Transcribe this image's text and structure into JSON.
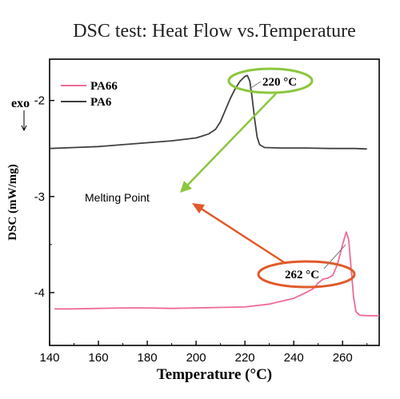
{
  "chart_data": {
    "type": "line",
    "title": "DSC test: Heat Flow vs.Temperature",
    "xlabel": "Temperature (°C)",
    "ylabel": "DSC (mW/mg)",
    "xlim": [
      140,
      275
    ],
    "ylim": [
      -4.55,
      -1.57
    ],
    "x_ticks": [
      140,
      160,
      180,
      200,
      220,
      240,
      260
    ],
    "y_ticks": [
      -2,
      -3,
      -4
    ],
    "x_tick_labels": [
      "140",
      "160",
      "180",
      "200",
      "220",
      "240",
      "260"
    ],
    "y_tick_labels": [
      "-2",
      "-3",
      "-4"
    ],
    "exo_label": "exo",
    "legend_position": "top-left",
    "series": [
      {
        "name": "PA66",
        "color": "#f06a96",
        "points": [
          [
            142,
            -4.17
          ],
          [
            150,
            -4.17
          ],
          [
            160,
            -4.165
          ],
          [
            170,
            -4.16
          ],
          [
            180,
            -4.16
          ],
          [
            190,
            -4.165
          ],
          [
            200,
            -4.16
          ],
          [
            210,
            -4.155
          ],
          [
            220,
            -4.15
          ],
          [
            230,
            -4.12
          ],
          [
            240,
            -4.06
          ],
          [
            245,
            -4.0
          ],
          [
            248,
            -3.96
          ],
          [
            250,
            -3.9
          ],
          [
            252,
            -3.86
          ],
          [
            254,
            -3.85
          ],
          [
            256,
            -3.82
          ],
          [
            258,
            -3.7
          ],
          [
            260,
            -3.5
          ],
          [
            261.5,
            -3.37
          ],
          [
            262.5,
            -3.45
          ],
          [
            263.5,
            -3.75
          ],
          [
            264.5,
            -4.05
          ],
          [
            265.5,
            -4.2
          ],
          [
            267,
            -4.235
          ],
          [
            270,
            -4.24
          ],
          [
            275,
            -4.24
          ]
        ]
      },
      {
        "name": "PA6",
        "color": "#404040",
        "points": [
          [
            140,
            -2.5
          ],
          [
            150,
            -2.49
          ],
          [
            160,
            -2.48
          ],
          [
            170,
            -2.46
          ],
          [
            180,
            -2.44
          ],
          [
            190,
            -2.42
          ],
          [
            200,
            -2.39
          ],
          [
            205,
            -2.35
          ],
          [
            208,
            -2.3
          ],
          [
            210,
            -2.22
          ],
          [
            212,
            -2.1
          ],
          [
            214,
            -1.98
          ],
          [
            216,
            -1.88
          ],
          [
            218,
            -1.8
          ],
          [
            220,
            -1.75
          ],
          [
            221,
            -1.74
          ],
          [
            222,
            -1.8
          ],
          [
            223,
            -1.98
          ],
          [
            224,
            -2.2
          ],
          [
            225,
            -2.38
          ],
          [
            226,
            -2.46
          ],
          [
            228,
            -2.49
          ],
          [
            235,
            -2.495
          ],
          [
            245,
            -2.495
          ],
          [
            255,
            -2.5
          ],
          [
            265,
            -2.5
          ],
          [
            270,
            -2.505
          ]
        ]
      }
    ],
    "annotations": {
      "melting_point": "Melting Point",
      "pa6_peak": "220 °C",
      "pa66_peak": "262 °C"
    },
    "annotation_colors": {
      "green": "#8cc63e",
      "orange": "#e05a2b"
    }
  }
}
